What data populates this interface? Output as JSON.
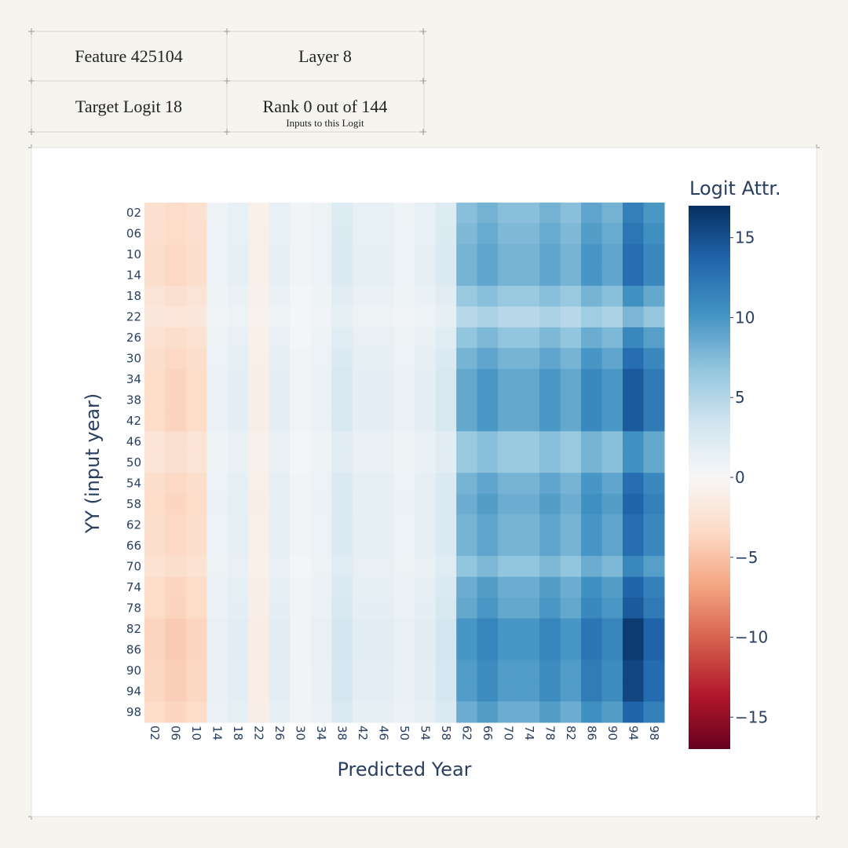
{
  "header": {
    "cells": [
      [
        "Feature 425104",
        "Layer 8"
      ],
      [
        "Target Logit 18",
        "Rank 0 out of 144"
      ]
    ],
    "note": "Inputs to this Logit"
  },
  "chart_data": {
    "type": "heatmap",
    "xlabel": "Predicted Year",
    "ylabel": "YY (input year)",
    "colorbar_title": "Logit Attr.",
    "categories": [
      "02",
      "06",
      "10",
      "14",
      "18",
      "22",
      "26",
      "30",
      "34",
      "38",
      "42",
      "46",
      "50",
      "54",
      "58",
      "62",
      "66",
      "70",
      "74",
      "78",
      "82",
      "86",
      "90",
      "94",
      "98"
    ],
    "y_categories": [
      "02",
      "06",
      "10",
      "14",
      "18",
      "22",
      "26",
      "30",
      "34",
      "38",
      "42",
      "46",
      "50",
      "54",
      "58",
      "62",
      "66",
      "70",
      "74",
      "78",
      "82",
      "86",
      "90",
      "94",
      "98"
    ],
    "zlim": [
      -17,
      17
    ],
    "zticks": [
      {
        "value": -15,
        "label": "−15"
      },
      {
        "value": -10,
        "label": "−10"
      },
      {
        "value": -5,
        "label": "−5"
      },
      0,
      5,
      10,
      15
    ],
    "colorscale": [
      "#67001f",
      "#b2182b",
      "#d6604d",
      "#f4a582",
      "#fddbc7",
      "#f7f7f7",
      "#d1e5f0",
      "#92c5de",
      "#4393c3",
      "#2166ac",
      "#053061"
    ],
    "z": [
      [
        -2.7,
        -3.2,
        -2.7,
        0.9,
        1.4,
        -0.9,
        1.4,
        0.5,
        0.9,
        2.3,
        1.4,
        1.4,
        0.9,
        1.4,
        2.3,
        7.2,
        8.1,
        7.2,
        7.2,
        8.1,
        7.2,
        9,
        8.1,
        11.7,
        9.9
      ],
      [
        -2.9,
        -3.3,
        -2.9,
        1,
        1.4,
        -1,
        1.4,
        0.5,
        1,
        2.4,
        1.4,
        1.4,
        1,
        1.4,
        2.4,
        7.6,
        8.6,
        7.6,
        7.6,
        8.6,
        7.6,
        9.5,
        8.6,
        12.4,
        10.5
      ],
      [
        -3,
        -3.5,
        -3,
        1,
        1.5,
        -1,
        1.5,
        0.5,
        1,
        2.5,
        1.5,
        1.5,
        1,
        1.5,
        2.5,
        8,
        9,
        8,
        8,
        9,
        8,
        10,
        9,
        13,
        11
      ],
      [
        -3,
        -3.5,
        -3,
        1,
        1.5,
        -1,
        1.5,
        0.5,
        1,
        2.5,
        1.5,
        1.5,
        1,
        1.5,
        2.5,
        8,
        9,
        8,
        8,
        9,
        8,
        10,
        9,
        13,
        11
      ],
      [
        -2.4,
        -2.8,
        -2.4,
        0.8,
        1.2,
        -0.8,
        1.2,
        0.4,
        0.8,
        2,
        1.2,
        1.2,
        0.8,
        1.2,
        2,
        6.4,
        7.2,
        6.4,
        6.4,
        7.2,
        6.4,
        8,
        7.2,
        10.4,
        8.8
      ],
      [
        -1.8,
        -2.1,
        -1.8,
        0.6,
        0.9,
        -0.6,
        0.9,
        0.3,
        0.6,
        1.5,
        0.9,
        0.9,
        0.6,
        0.9,
        1.5,
        4.8,
        5.4,
        4.8,
        4.8,
        5.4,
        4.8,
        6,
        5.4,
        7.8,
        6.6
      ],
      [
        -2.6,
        -3,
        -2.6,
        0.9,
        1.3,
        -0.9,
        1.3,
        0.4,
        0.9,
        2.1,
        1.3,
        1.3,
        0.9,
        1.3,
        2.1,
        6.8,
        7.7,
        6.8,
        6.8,
        7.7,
        6.8,
        8.5,
        7.7,
        11.1,
        9.4
      ],
      [
        -3,
        -3.5,
        -3,
        1,
        1.5,
        -1,
        1.5,
        0.5,
        1,
        2.5,
        1.5,
        1.5,
        1,
        1.5,
        2.5,
        8,
        9,
        8,
        8,
        9,
        8,
        10,
        9,
        13,
        11
      ],
      [
        -3.3,
        -3.9,
        -3.3,
        1.1,
        1.7,
        -1.1,
        1.7,
        0.6,
        1.1,
        2.8,
        1.7,
        1.7,
        1.1,
        1.7,
        2.8,
        8.8,
        9.9,
        8.8,
        8.8,
        9.9,
        8.8,
        11,
        9.9,
        14.3,
        12.1
      ],
      [
        -3.3,
        -3.9,
        -3.3,
        1.1,
        1.7,
        -1.1,
        1.7,
        0.6,
        1.1,
        2.8,
        1.7,
        1.7,
        1.1,
        1.7,
        2.8,
        8.8,
        9.9,
        8.8,
        8.8,
        9.9,
        8.8,
        11,
        9.9,
        14.3,
        12.1
      ],
      [
        -3.3,
        -3.9,
        -3.3,
        1.1,
        1.7,
        -1.1,
        1.7,
        0.6,
        1.1,
        2.8,
        1.7,
        1.7,
        1.1,
        1.7,
        2.8,
        8.8,
        9.9,
        8.8,
        8.8,
        9.9,
        8.8,
        11,
        9.9,
        14.3,
        12.1
      ],
      [
        -2.4,
        -2.8,
        -2.4,
        0.8,
        1.2,
        -0.8,
        1.2,
        0.4,
        0.8,
        2,
        1.2,
        1.2,
        0.8,
        1.2,
        2,
        6.4,
        7.2,
        6.4,
        6.4,
        7.2,
        6.4,
        8,
        7.2,
        10.4,
        8.8
      ],
      [
        -2.4,
        -2.8,
        -2.4,
        0.8,
        1.2,
        -0.8,
        1.2,
        0.4,
        0.8,
        2,
        1.2,
        1.2,
        0.8,
        1.2,
        2,
        6.4,
        7.2,
        6.4,
        6.4,
        7.2,
        6.4,
        8,
        7.2,
        10.4,
        8.8
      ],
      [
        -3,
        -3.5,
        -3,
        1,
        1.5,
        -1,
        1.5,
        0.5,
        1,
        2.5,
        1.5,
        1.5,
        1,
        1.5,
        2.5,
        8,
        9,
        8,
        8,
        9,
        8,
        10,
        9,
        13,
        11
      ],
      [
        -3.2,
        -3.7,
        -3.2,
        1.1,
        1.6,
        -1.1,
        1.6,
        0.5,
        1.1,
        2.6,
        1.6,
        1.6,
        1.1,
        1.6,
        2.6,
        8.4,
        9.5,
        8.4,
        8.4,
        9.5,
        8.4,
        10.5,
        9.5,
        13.7,
        11.6
      ],
      [
        -3,
        -3.5,
        -3,
        1,
        1.5,
        -1,
        1.5,
        0.5,
        1,
        2.5,
        1.5,
        1.5,
        1,
        1.5,
        2.5,
        8,
        9,
        8,
        8,
        9,
        8,
        10,
        9,
        13,
        11
      ],
      [
        -3,
        -3.5,
        -3,
        1,
        1.5,
        -1,
        1.5,
        0.5,
        1,
        2.5,
        1.5,
        1.5,
        1,
        1.5,
        2.5,
        8,
        9,
        8,
        8,
        9,
        8,
        10,
        9,
        13,
        11
      ],
      [
        -2.6,
        -3,
        -2.6,
        0.9,
        1.3,
        -0.9,
        1.3,
        0.4,
        0.9,
        2.1,
        1.3,
        1.3,
        0.9,
        1.3,
        2.1,
        6.8,
        7.7,
        6.8,
        6.8,
        7.7,
        6.8,
        8.5,
        7.7,
        11.1,
        9.4
      ],
      [
        -3.2,
        -3.7,
        -3.2,
        1.1,
        1.6,
        -1.1,
        1.6,
        0.5,
        1.1,
        2.6,
        1.6,
        1.6,
        1.1,
        1.6,
        2.6,
        8.4,
        9.5,
        8.4,
        8.4,
        9.5,
        8.4,
        10.5,
        9.5,
        13.7,
        11.6
      ],
      [
        -3.3,
        -3.9,
        -3.3,
        1.1,
        1.7,
        -1.1,
        1.7,
        0.6,
        1.1,
        2.8,
        1.7,
        1.7,
        1.1,
        1.7,
        2.8,
        8.8,
        9.9,
        8.8,
        8.8,
        9.9,
        8.8,
        11,
        9.9,
        14.3,
        12.1
      ],
      [
        -3.8,
        -4.4,
        -3.8,
        1.3,
        1.9,
        -1.3,
        1.9,
        0.6,
        1.3,
        3.1,
        1.9,
        1.9,
        1.3,
        1.9,
        3.1,
        10,
        11.3,
        10,
        10,
        11.3,
        10,
        12.5,
        11.3,
        16.3,
        13.8
      ],
      [
        -3.8,
        -4.4,
        -3.8,
        1.3,
        1.9,
        -1.3,
        1.9,
        0.6,
        1.3,
        3.1,
        1.9,
        1.9,
        1.3,
        1.9,
        3.1,
        10,
        11.3,
        10,
        10,
        11.3,
        10,
        12.5,
        11.3,
        16.3,
        13.8
      ],
      [
        -3.6,
        -4.2,
        -3.6,
        1.2,
        1.8,
        -1.2,
        1.8,
        0.6,
        1.2,
        3,
        1.8,
        1.8,
        1.2,
        1.8,
        3,
        9.6,
        10.8,
        9.6,
        9.6,
        10.8,
        9.6,
        12,
        10.8,
        15.6,
        13.2
      ],
      [
        -3.6,
        -4.2,
        -3.6,
        1.2,
        1.8,
        -1.2,
        1.8,
        0.6,
        1.2,
        3,
        1.8,
        1.8,
        1.2,
        1.8,
        3,
        9.6,
        10.8,
        9.6,
        9.6,
        10.8,
        9.6,
        12,
        10.8,
        15.6,
        13.2
      ],
      [
        -3.2,
        -3.7,
        -3.2,
        1.1,
        1.6,
        -1.1,
        1.6,
        0.5,
        1.1,
        2.6,
        1.6,
        1.6,
        1.1,
        1.6,
        2.6,
        8.4,
        9.5,
        8.4,
        8.4,
        9.5,
        8.4,
        10.5,
        9.5,
        13.7,
        11.6
      ]
    ]
  }
}
